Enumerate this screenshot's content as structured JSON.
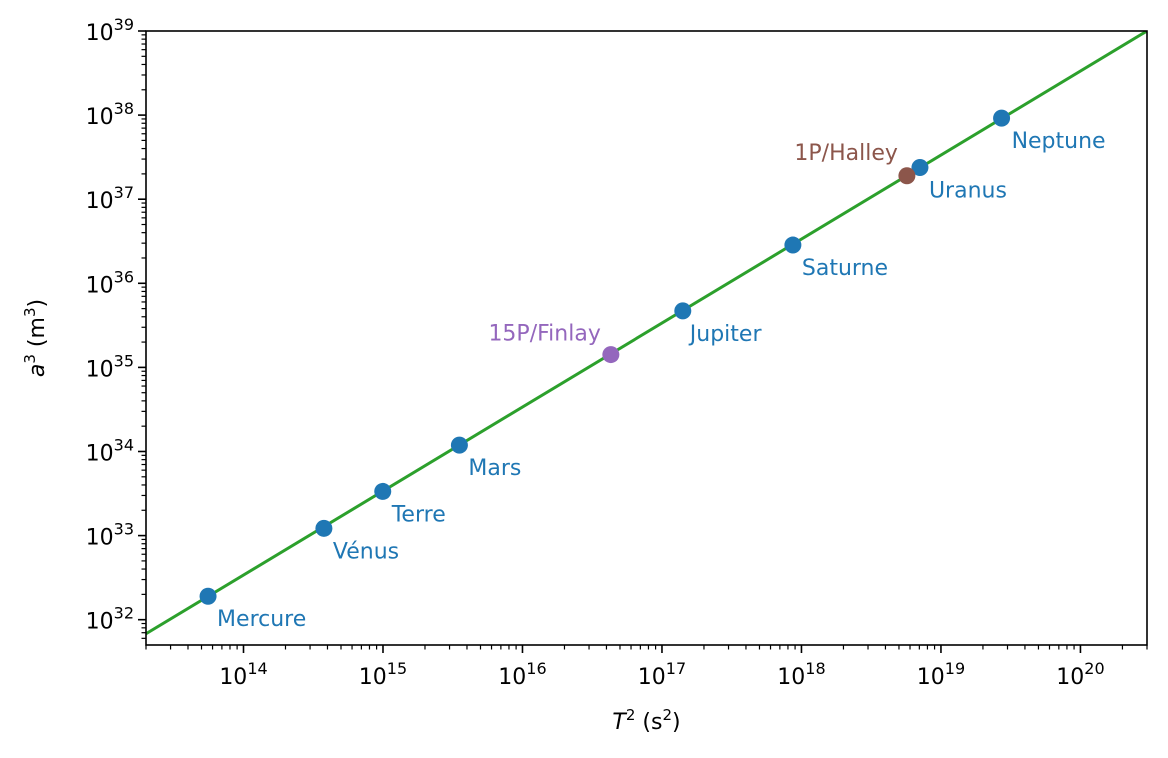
{
  "chart_data": {
    "type": "scatter",
    "xlabel": {
      "base": "T",
      "sup": "2",
      "unit": " (s",
      "unit_sup": "2",
      "close": ")"
    },
    "ylabel": {
      "base": "a",
      "sup": "3",
      "unit": " (m",
      "unit_sup": "3",
      "close": ")"
    },
    "x_scale": "log",
    "y_scale": "log",
    "xlim": [
      20000000000000.0,
      3e+20
    ],
    "ylim": [
      5e+31,
      1e+39
    ],
    "x_ticks": [
      {
        "value": 100000000000000.0,
        "base": "10",
        "exp": "14"
      },
      {
        "value": 1000000000000000.0,
        "base": "10",
        "exp": "15"
      },
      {
        "value": 1e+16,
        "base": "10",
        "exp": "16"
      },
      {
        "value": 1e+17,
        "base": "10",
        "exp": "17"
      },
      {
        "value": 1e+18,
        "base": "10",
        "exp": "18"
      },
      {
        "value": 1e+19,
        "base": "10",
        "exp": "19"
      },
      {
        "value": 1e+20,
        "base": "10",
        "exp": "20"
      }
    ],
    "y_ticks": [
      {
        "value": 1e+32,
        "base": "10",
        "exp": "32"
      },
      {
        "value": 1e+33,
        "base": "10",
        "exp": "33"
      },
      {
        "value": 1e+34,
        "base": "10",
        "exp": "34"
      },
      {
        "value": 1e+35,
        "base": "10",
        "exp": "35"
      },
      {
        "value": 1e+36,
        "base": "10",
        "exp": "36"
      },
      {
        "value": 1e+37,
        "base": "10",
        "exp": "37"
      },
      {
        "value": 1e+38,
        "base": "10",
        "exp": "38"
      },
      {
        "value": 1e+39,
        "base": "10",
        "exp": "39"
      }
    ],
    "grid": false,
    "fit_line": {
      "color": "#2ca02c",
      "points": [
        {
          "x": 20000000000000.0,
          "y": 6.8e+31
        },
        {
          "x": 3e+20,
          "y": 1e+39
        }
      ]
    },
    "series": [
      {
        "color": "#1f77b4",
        "points": [
          {
            "label": "Mercure",
            "x": 55700000000000.0,
            "y": 1.9e+32
          },
          {
            "label": "Vénus",
            "x": 377000000000000.0,
            "y": 1.22e+33
          },
          {
            "label": "Terre",
            "x": 996000000000000.0,
            "y": 3.35e+33
          },
          {
            "label": "Mars",
            "x": 3530000000000000.0,
            "y": 1.19e+34
          },
          {
            "label": "Jupiter",
            "x": 1.41e+17,
            "y": 4.7e+35
          },
          {
            "label": "Saturne",
            "x": 8.68e+17,
            "y": 2.85e+36
          },
          {
            "label": "Uranus",
            "x": 7.07e+18,
            "y": 2.38e+37
          },
          {
            "label": "Neptune",
            "x": 2.72e+19,
            "y": 9.2e+37
          }
        ]
      },
      {
        "color": "#9467bd",
        "points": [
          {
            "label": "15P/Finlay",
            "x": 4.3e+16,
            "y": 1.42e+35
          }
        ]
      },
      {
        "color": "#8c564b",
        "points": [
          {
            "label": "1P/Halley",
            "x": 5.7e+18,
            "y": 1.9e+37
          }
        ]
      }
    ]
  }
}
